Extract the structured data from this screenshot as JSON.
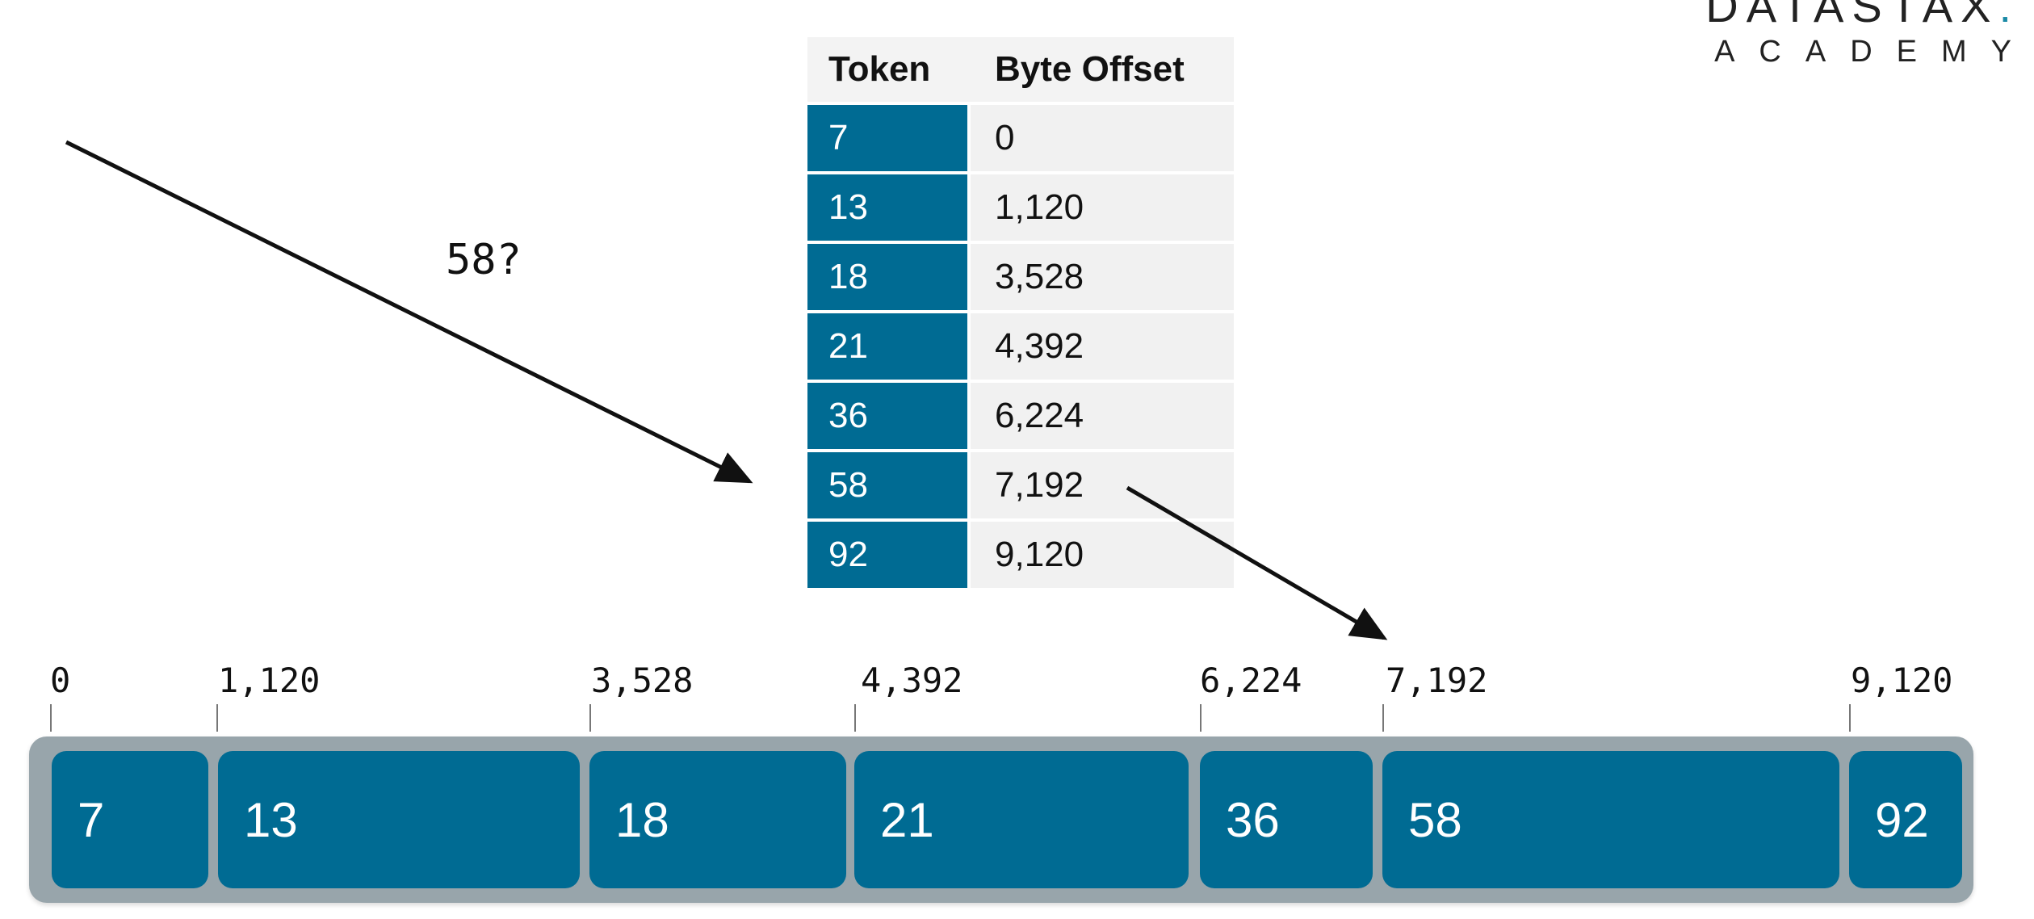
{
  "logo": {
    "word": "DATASTAX",
    "dot": ".",
    "sub": "ACADEMY"
  },
  "index_table": {
    "headers": {
      "token": "Token",
      "offset": "Byte Offset"
    },
    "rows": [
      {
        "token": "7",
        "offset": "0"
      },
      {
        "token": "13",
        "offset": "1,120"
      },
      {
        "token": "18",
        "offset": "3,528"
      },
      {
        "token": "21",
        "offset": "4,392"
      },
      {
        "token": "36",
        "offset": "6,224"
      },
      {
        "token": "58",
        "offset": "7,192"
      },
      {
        "token": "92",
        "offset": "9,120"
      }
    ]
  },
  "query": {
    "label": "58?"
  },
  "ruler": {
    "labels": [
      "0",
      "1,120",
      "3,528",
      "4,392",
      "6,224",
      "7,192",
      "9,120"
    ]
  },
  "partitions": [
    {
      "label": "7"
    },
    {
      "label": "13"
    },
    {
      "label": "18"
    },
    {
      "label": "21"
    },
    {
      "label": "36"
    },
    {
      "label": "58"
    },
    {
      "label": "92"
    }
  ],
  "colors": {
    "accent": "#006b93",
    "file_background": "#98a5ab",
    "offset_cell": "#f1f1f1",
    "logo_dot": "#1a8aa6"
  }
}
